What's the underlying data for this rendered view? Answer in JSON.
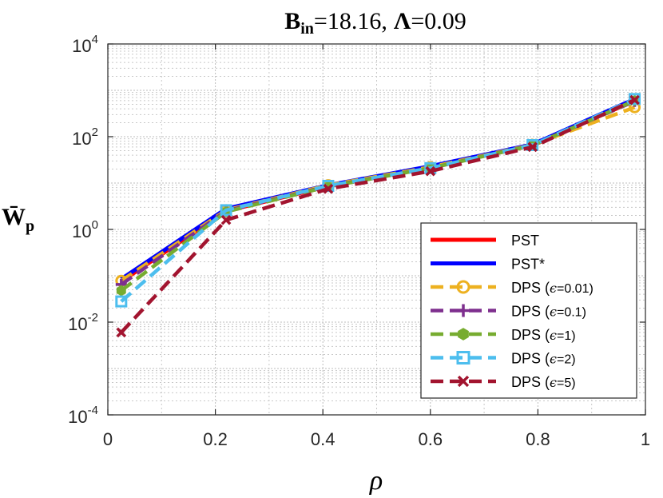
{
  "chart_data": {
    "type": "line",
    "title": {
      "b_symbol": "B",
      "b_subscript": "in",
      "b_value": "=18.16,",
      "lambda_symbol": "Λ",
      "lambda_value": "=0.09"
    },
    "xlabel": "ρ",
    "ylabel": {
      "symbol": "W̄",
      "subscript": "p"
    },
    "xlim": [
      0,
      1
    ],
    "ylim": [
      0.0001,
      10000
    ],
    "yscale": "log",
    "grid": true,
    "legend_position": "bottom-right",
    "x_ticks": [
      {
        "value": 0,
        "label": "0"
      },
      {
        "value": 0.2,
        "label": "0.2"
      },
      {
        "value": 0.4,
        "label": "0.4"
      },
      {
        "value": 0.6,
        "label": "0.6"
      },
      {
        "value": 0.8,
        "label": "0.8"
      },
      {
        "value": 1,
        "label": "1"
      }
    ],
    "y_ticks": [
      {
        "value": 0.0001,
        "base": "10",
        "exp": "-4"
      },
      {
        "value": 0.01,
        "base": "10",
        "exp": "-2"
      },
      {
        "value": 1,
        "base": "10",
        "exp": "0"
      },
      {
        "value": 100,
        "base": "10",
        "exp": "2"
      },
      {
        "value": 10000,
        "base": "10",
        "exp": "4"
      }
    ],
    "series": [
      {
        "name": "PST",
        "label_base": "PST",
        "label_eps": "",
        "label_close": "",
        "color": "#ff0000",
        "dash": "solid",
        "marker": "none",
        "x": [
          0.025,
          0.22,
          0.41,
          0.6,
          0.79,
          0.98
        ],
        "y": [
          0.075,
          2.5,
          8.5,
          22,
          65,
          600
        ]
      },
      {
        "name": "PST*",
        "label_base": "PST*",
        "label_eps": "",
        "label_close": "",
        "color": "#0000ff",
        "dash": "solid",
        "marker": "none",
        "x": [
          0.025,
          0.22,
          0.41,
          0.6,
          0.79,
          0.98
        ],
        "y": [
          0.085,
          2.8,
          9,
          23,
          68,
          650
        ]
      },
      {
        "name": "DPS (ϵ=0.01)",
        "label_base": "DPS (",
        "label_eps": "ϵ",
        "label_close": "=0.01)",
        "color": "#edb120",
        "dash": "dashed",
        "marker": "circle",
        "x": [
          0.025,
          0.22,
          0.41,
          0.6,
          0.79,
          0.98
        ],
        "y": [
          0.078,
          2.6,
          9,
          22,
          67,
          430
        ]
      },
      {
        "name": "DPS (ϵ=0.1)",
        "label_base": "DPS (",
        "label_eps": "ϵ",
        "label_close": "=0.1)",
        "color": "#7e2f8e",
        "dash": "dashed",
        "marker": "plus",
        "x": [
          0.025,
          0.22,
          0.41,
          0.6,
          0.79,
          0.98
        ],
        "y": [
          0.065,
          2.5,
          8.6,
          21,
          66,
          580
        ]
      },
      {
        "name": "DPS (ϵ=1)",
        "label_base": "DPS (",
        "label_eps": "ϵ",
        "label_close": "=1)",
        "color": "#77ac30",
        "dash": "dashed",
        "marker": "hexagon",
        "x": [
          0.025,
          0.22,
          0.41,
          0.6,
          0.79,
          0.98
        ],
        "y": [
          0.048,
          2.4,
          8.4,
          21,
          65,
          600
        ]
      },
      {
        "name": "DPS (ϵ=2)",
        "label_base": "DPS (",
        "label_eps": "ϵ",
        "label_close": "=2)",
        "color": "#4dbeee",
        "dash": "dashed",
        "marker": "square",
        "x": [
          0.025,
          0.22,
          0.41,
          0.6,
          0.79,
          0.98
        ],
        "y": [
          0.028,
          2.6,
          8.7,
          21,
          66,
          650
        ]
      },
      {
        "name": "DPS (ϵ=5)",
        "label_base": "DPS (",
        "label_eps": "ϵ",
        "label_close": "=5)",
        "color": "#a2142f",
        "dash": "dashed",
        "marker": "x",
        "x": [
          0.025,
          0.22,
          0.41,
          0.6,
          0.79,
          0.98
        ],
        "y": [
          0.006,
          1.6,
          7.5,
          18,
          60,
          620
        ]
      }
    ]
  }
}
